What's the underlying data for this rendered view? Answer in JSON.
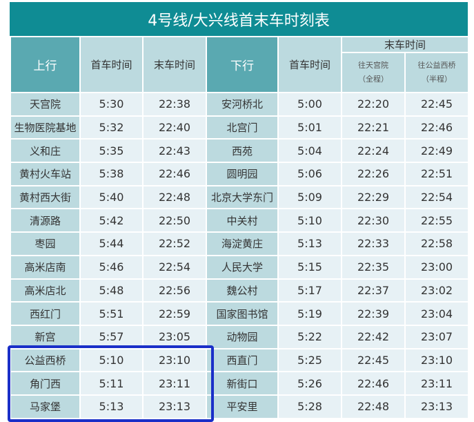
{
  "title": "4号线/大兴线首末车时刻表",
  "header": {
    "up": "上行",
    "first": "首车时间",
    "last": "末车时间",
    "down": "下行",
    "down_first": "首车时间",
    "down_last": "末车时间",
    "to_tiangongyuan": "往天宫院",
    "full": "（全程）",
    "to_gongyixiqiao": "往公益西桥",
    "half": "（半程）"
  },
  "rows": [
    [
      "天宫院",
      "5:30",
      "22:38",
      "安河桥北",
      "5:00",
      "22:20",
      "22:45"
    ],
    [
      "生物医院基地",
      "5:32",
      "22:40",
      "北宫门",
      "5:01",
      "22:21",
      "22:46"
    ],
    [
      "义和庄",
      "5:35",
      "22:43",
      "西苑",
      "5:04",
      "22:24",
      "22:49"
    ],
    [
      "黄村火车站",
      "5:38",
      "22:46",
      "圆明园",
      "5:06",
      "22:26",
      "22:51"
    ],
    [
      "黄村西大街",
      "5:40",
      "22:48",
      "北京大学东门",
      "5:09",
      "22:29",
      "22:54"
    ],
    [
      "清源路",
      "5:42",
      "22:50",
      "中关村",
      "5:10",
      "22:30",
      "22:55"
    ],
    [
      "枣园",
      "5:44",
      "22:52",
      "海淀黄庄",
      "5:13",
      "22:33",
      "22:58"
    ],
    [
      "高米店南",
      "5:46",
      "22:54",
      "人民大学",
      "5:15",
      "22:35",
      "23:00"
    ],
    [
      "高米店北",
      "5:48",
      "22:56",
      "魏公村",
      "5:17",
      "22:37",
      "23:02"
    ],
    [
      "西红门",
      "5:51",
      "22:59",
      "国家图书馆",
      "5:19",
      "22:39",
      "23:04"
    ],
    [
      "新宫",
      "5:57",
      "23:05",
      "动物园",
      "5:22",
      "22:42",
      "23:07"
    ],
    [
      "公益西桥",
      "5:10",
      "23:10",
      "西直门",
      "5:25",
      "22:45",
      "23:10"
    ],
    [
      "角门西",
      "5:11",
      "23:11",
      "新街口",
      "5:26",
      "22:46",
      "23:11"
    ],
    [
      "马家堡",
      "5:13",
      "23:13",
      "平安里",
      "5:28",
      "22:48",
      "23:13"
    ]
  ],
  "highlight_color": "#1a2fc8"
}
